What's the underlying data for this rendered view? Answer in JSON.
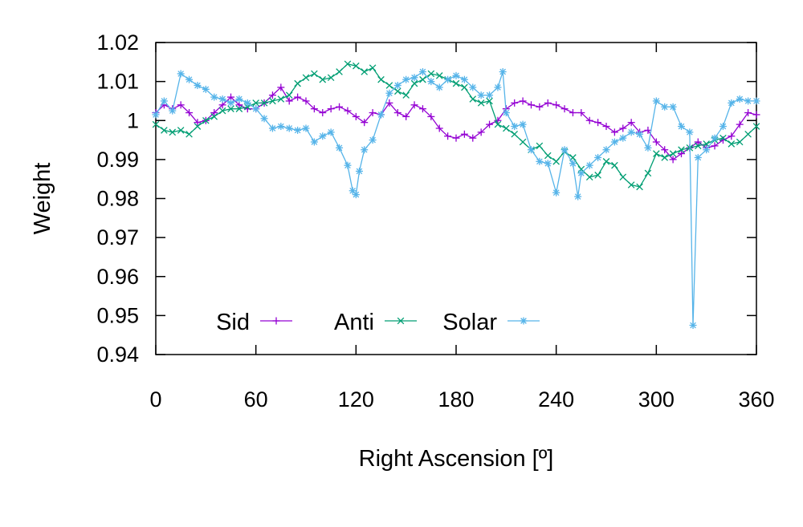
{
  "chart_data": {
    "type": "line",
    "title": "",
    "xlabel": "Right Ascension [º]",
    "ylabel": "Weight",
    "xlim": [
      0,
      360
    ],
    "ylim": [
      0.94,
      1.02
    ],
    "xticks": [
      0,
      60,
      120,
      180,
      240,
      300,
      360
    ],
    "xtick_labels": [
      "0",
      "60",
      "120",
      "180",
      "240",
      "300",
      "360"
    ],
    "yticks": [
      0.94,
      0.95,
      0.96,
      0.97,
      0.98,
      0.99,
      1.0,
      1.01,
      1.02
    ],
    "ytick_labels": [
      "0.94",
      "0.95",
      "0.96",
      "0.97",
      "0.98",
      "0.99",
      "1",
      "1.01",
      "1.02"
    ],
    "grid": false,
    "legend_position": "bottom-left",
    "series": [
      {
        "name": "Sid",
        "color": "#9400d3",
        "marker": "plus",
        "points": [
          [
            0,
            1.002
          ],
          [
            5,
            1.004
          ],
          [
            10,
            1.003
          ],
          [
            15,
            1.004
          ],
          [
            20,
            1.002
          ],
          [
            25,
            0.9995
          ],
          [
            30,
            1.0
          ],
          [
            35,
            1.002
          ],
          [
            40,
            1.004
          ],
          [
            45,
            1.006
          ],
          [
            50,
            1.004
          ],
          [
            55,
            1.003
          ],
          [
            60,
            1.003
          ],
          [
            65,
            1.0045
          ],
          [
            70,
            1.0065
          ],
          [
            75,
            1.0085
          ],
          [
            80,
            1.005
          ],
          [
            85,
            1.006
          ],
          [
            90,
            1.005
          ],
          [
            95,
            1.003
          ],
          [
            100,
            1.002
          ],
          [
            105,
            1.003
          ],
          [
            110,
            1.0035
          ],
          [
            115,
            1.0025
          ],
          [
            120,
            1.001
          ],
          [
            125,
            0.9995
          ],
          [
            130,
            1.002
          ],
          [
            135,
            1.0015
          ],
          [
            140,
            1.0045
          ],
          [
            145,
            1.002
          ],
          [
            150,
            1.001
          ],
          [
            155,
            1.004
          ],
          [
            160,
            1.003
          ],
          [
            165,
            1.001
          ],
          [
            170,
            0.998
          ],
          [
            175,
            0.996
          ],
          [
            180,
            0.9955
          ],
          [
            185,
            0.9965
          ],
          [
            190,
            0.9955
          ],
          [
            195,
            0.997
          ],
          [
            200,
            0.999
          ],
          [
            205,
            1.0
          ],
          [
            210,
            1.003
          ],
          [
            215,
            1.0045
          ],
          [
            220,
            1.005
          ],
          [
            225,
            1.004
          ],
          [
            230,
            1.0035
          ],
          [
            235,
            1.0045
          ],
          [
            240,
            1.004
          ],
          [
            245,
            1.003
          ],
          [
            250,
            1.002
          ],
          [
            255,
            1.002
          ],
          [
            260,
            1.0
          ],
          [
            265,
            0.9995
          ],
          [
            270,
            0.9985
          ],
          [
            275,
            0.997
          ],
          [
            280,
            0.998
          ],
          [
            285,
            0.9995
          ],
          [
            290,
            0.997
          ],
          [
            295,
            0.9975
          ],
          [
            300,
            0.9945
          ],
          [
            305,
            0.9925
          ],
          [
            310,
            0.99
          ],
          [
            315,
            0.9915
          ],
          [
            320,
            0.993
          ],
          [
            325,
            0.9945
          ],
          [
            330,
            0.993
          ],
          [
            335,
            0.9935
          ],
          [
            340,
            0.995
          ],
          [
            345,
            0.996
          ],
          [
            350,
            0.999
          ],
          [
            355,
            1.002
          ],
          [
            360,
            1.0015
          ]
        ]
      },
      {
        "name": "Anti",
        "color": "#009e73",
        "marker": "cross",
        "points": [
          [
            0,
            0.999
          ],
          [
            5,
            0.9975
          ],
          [
            10,
            0.997
          ],
          [
            15,
            0.9975
          ],
          [
            20,
            0.9965
          ],
          [
            25,
            0.9985
          ],
          [
            30,
            1.0
          ],
          [
            35,
            1.001
          ],
          [
            40,
            1.0025
          ],
          [
            45,
            1.003
          ],
          [
            50,
            1.003
          ],
          [
            55,
            1.0035
          ],
          [
            60,
            1.0045
          ],
          [
            65,
            1.0045
          ],
          [
            70,
            1.005
          ],
          [
            75,
            1.0055
          ],
          [
            80,
            1.0065
          ],
          [
            85,
            1.0095
          ],
          [
            90,
            1.011
          ],
          [
            95,
            1.012
          ],
          [
            100,
            1.0105
          ],
          [
            105,
            1.011
          ],
          [
            110,
            1.0125
          ],
          [
            115,
            1.0145
          ],
          [
            120,
            1.014
          ],
          [
            125,
            1.0125
          ],
          [
            130,
            1.0135
          ],
          [
            135,
            1.0105
          ],
          [
            140,
            1.009
          ],
          [
            145,
            1.0075
          ],
          [
            150,
            1.0065
          ],
          [
            155,
            1.0095
          ],
          [
            160,
            1.0105
          ],
          [
            165,
            1.012
          ],
          [
            170,
            1.0115
          ],
          [
            175,
            1.0105
          ],
          [
            180,
            1.0095
          ],
          [
            185,
            1.0085
          ],
          [
            190,
            1.0055
          ],
          [
            195,
            1.0045
          ],
          [
            200,
            1.005
          ],
          [
            205,
            0.999
          ],
          [
            210,
            0.998
          ],
          [
            215,
            0.9965
          ],
          [
            220,
            0.9945
          ],
          [
            225,
            0.9925
          ],
          [
            230,
            0.9935
          ],
          [
            235,
            0.991
          ],
          [
            240,
            0.9895
          ],
          [
            245,
            0.992
          ],
          [
            250,
            0.9905
          ],
          [
            255,
            0.9875
          ],
          [
            260,
            0.9855
          ],
          [
            265,
            0.986
          ],
          [
            270,
            0.9895
          ],
          [
            275,
            0.9885
          ],
          [
            280,
            0.9855
          ],
          [
            285,
            0.9835
          ],
          [
            290,
            0.983
          ],
          [
            295,
            0.9865
          ],
          [
            300,
            0.9915
          ],
          [
            305,
            0.9905
          ],
          [
            310,
            0.9915
          ],
          [
            315,
            0.9925
          ],
          [
            320,
            0.993
          ],
          [
            325,
            0.9935
          ],
          [
            330,
            0.994
          ],
          [
            335,
            0.995
          ],
          [
            340,
            0.9955
          ],
          [
            345,
            0.994
          ],
          [
            350,
            0.9945
          ],
          [
            355,
            0.9965
          ],
          [
            360,
            0.9985
          ]
        ]
      },
      {
        "name": "Solar",
        "color": "#56b4e9",
        "marker": "star",
        "points": [
          [
            0,
            1.0015
          ],
          [
            5,
            1.005
          ],
          [
            10,
            1.0025
          ],
          [
            15,
            1.012
          ],
          [
            20,
            1.0105
          ],
          [
            25,
            1.009
          ],
          [
            30,
            1.008
          ],
          [
            35,
            1.006
          ],
          [
            40,
            1.0055
          ],
          [
            45,
            1.0045
          ],
          [
            50,
            1.0055
          ],
          [
            55,
            1.0045
          ],
          [
            60,
            1.003
          ],
          [
            65,
            1.0005
          ],
          [
            70,
            0.998
          ],
          [
            75,
            0.9985
          ],
          [
            80,
            0.998
          ],
          [
            85,
            0.9975
          ],
          [
            90,
            0.998
          ],
          [
            95,
            0.9945
          ],
          [
            100,
            0.996
          ],
          [
            105,
            0.997
          ],
          [
            110,
            0.993
          ],
          [
            115,
            0.9885
          ],
          [
            118,
            0.982
          ],
          [
            120,
            0.981
          ],
          [
            122,
            0.987
          ],
          [
            125,
            0.9925
          ],
          [
            130,
            0.995
          ],
          [
            135,
            1.0015
          ],
          [
            140,
            1.007
          ],
          [
            145,
            1.009
          ],
          [
            150,
            1.0105
          ],
          [
            155,
            1.011
          ],
          [
            160,
            1.0125
          ],
          [
            165,
            1.01
          ],
          [
            170,
            1.0085
          ],
          [
            175,
            1.0105
          ],
          [
            180,
            1.0115
          ],
          [
            185,
            1.0105
          ],
          [
            190,
            1.0085
          ],
          [
            195,
            1.0065
          ],
          [
            200,
            1.0065
          ],
          [
            205,
            1.0085
          ],
          [
            208,
            1.0125
          ],
          [
            210,
            1.002
          ],
          [
            215,
            0.9985
          ],
          [
            220,
            0.999
          ],
          [
            225,
            0.9925
          ],
          [
            230,
            0.9895
          ],
          [
            235,
            0.989
          ],
          [
            240,
            0.9815
          ],
          [
            245,
            0.9925
          ],
          [
            250,
            0.989
          ],
          [
            253,
            0.9805
          ],
          [
            255,
            0.9865
          ],
          [
            260,
            0.9885
          ],
          [
            265,
            0.9905
          ],
          [
            270,
            0.9925
          ],
          [
            275,
            0.9945
          ],
          [
            280,
            0.9955
          ],
          [
            285,
            0.997
          ],
          [
            290,
            0.9965
          ],
          [
            295,
            0.993
          ],
          [
            300,
            1.005
          ],
          [
            305,
            1.0035
          ],
          [
            310,
            1.0035
          ],
          [
            315,
            0.9985
          ],
          [
            320,
            0.997
          ],
          [
            322,
            0.9475
          ],
          [
            325,
            0.9905
          ],
          [
            330,
            0.9925
          ],
          [
            335,
            0.9955
          ],
          [
            340,
            0.9985
          ],
          [
            345,
            1.0045
          ],
          [
            350,
            1.0055
          ],
          [
            355,
            1.005
          ],
          [
            360,
            1.005
          ]
        ]
      }
    ]
  }
}
